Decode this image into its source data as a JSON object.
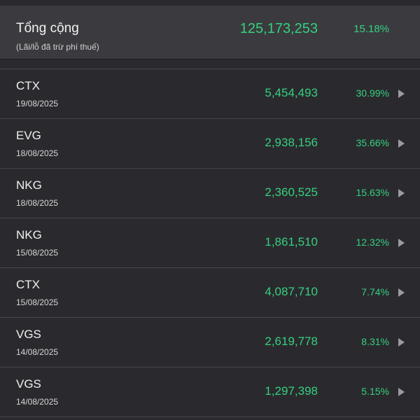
{
  "summary": {
    "title": "Tổng cộng",
    "note": "(Lãi/lỗ đã trừ phí thuế)",
    "value": "125,173,253",
    "percent": "15.18%"
  },
  "rows": [
    {
      "symbol": "CTX",
      "date": "19/08/2025",
      "amount": "5,454,493",
      "percent": "30.99%"
    },
    {
      "symbol": "EVG",
      "date": "18/08/2025",
      "amount": "2,938,156",
      "percent": "35.66%"
    },
    {
      "symbol": "NKG",
      "date": "18/08/2025",
      "amount": "2,360,525",
      "percent": "15.63%"
    },
    {
      "symbol": "NKG",
      "date": "15/08/2025",
      "amount": "1,861,510",
      "percent": "12.32%"
    },
    {
      "symbol": "CTX",
      "date": "15/08/2025",
      "amount": "4,087,710",
      "percent": "7.74%"
    },
    {
      "symbol": "VGS",
      "date": "14/08/2025",
      "amount": "2,619,778",
      "percent": "8.31%"
    },
    {
      "symbol": "VGS",
      "date": "14/08/2025",
      "amount": "1,297,398",
      "percent": "5.15%"
    }
  ],
  "colors": {
    "positive": "#35d07f",
    "background": "#2a2a2e",
    "summary_background": "#3b3b3f"
  },
  "icons": {
    "row_chevron": "chevron-right-icon"
  }
}
